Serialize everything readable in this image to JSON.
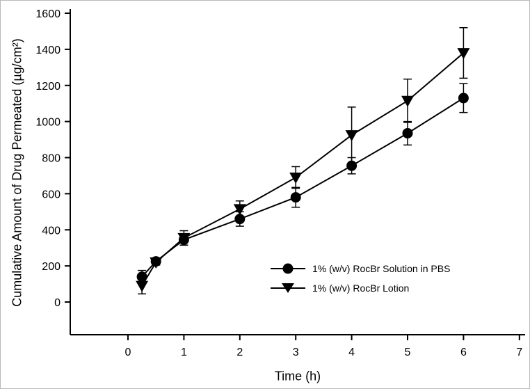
{
  "chart_data": {
    "type": "line",
    "title": "",
    "xlabel": "Time (h)",
    "ylabel": "Cumulative Amount of Drug Permeated (µg/cm²)",
    "xlim": [
      0,
      7
    ],
    "ylim": [
      0,
      1600
    ],
    "x_ticks": [
      0,
      1,
      2,
      3,
      4,
      5,
      6,
      7
    ],
    "y_ticks": [
      0,
      200,
      400,
      600,
      800,
      1000,
      1200,
      1400,
      1600
    ],
    "x": [
      0.25,
      0.5,
      1,
      2,
      3,
      4,
      5,
      6
    ],
    "series": [
      {
        "name": "1% (w/v) RocBr Solution in PBS",
        "marker": "circle",
        "values": [
          140,
          225,
          345,
          460,
          580,
          755,
          935,
          1130
        ],
        "errors": [
          35,
          20,
          30,
          40,
          55,
          45,
          65,
          80
        ]
      },
      {
        "name": "1% (w/v) RocBr Lotion",
        "marker": "triangle-down",
        "values": [
          90,
          220,
          355,
          515,
          690,
          925,
          1115,
          1380
        ],
        "errors": [
          45,
          15,
          40,
          45,
          60,
          155,
          120,
          140
        ]
      }
    ],
    "legend_position": "inside-lower-right",
    "grid": false,
    "colors": {
      "line": "#000000",
      "marker": "#000000",
      "background": "#ffffff"
    }
  }
}
